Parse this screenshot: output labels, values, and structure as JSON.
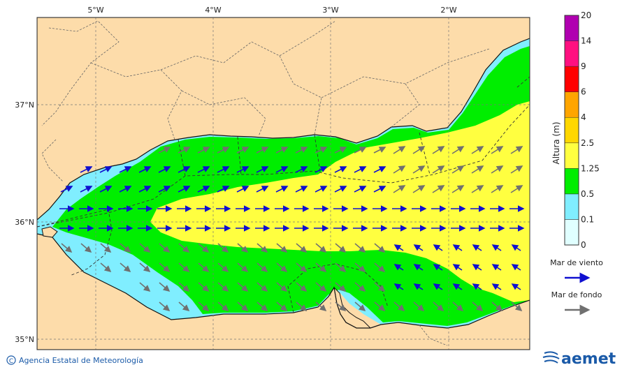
{
  "map": {
    "lon_labels": [
      "5°W",
      "4°W",
      "3°W",
      "2°W"
    ],
    "lat_labels": [
      "37°N",
      "36°N",
      "35°N"
    ]
  },
  "colorbar": {
    "title": "Altura (m)",
    "levels": [
      "0",
      "0.1",
      "0.5",
      "1.25",
      "2.5",
      "4",
      "6",
      "9",
      "14",
      "20"
    ],
    "colors": [
      "#e0ffff",
      "#80eeff",
      "#00ee00",
      "#ffff40",
      "#ffd700",
      "#ffa500",
      "#ff0000",
      "#ff1080",
      "#b000b0"
    ]
  },
  "legend": {
    "wind_sea": "Mar de viento",
    "swell": "Mar de fondo",
    "wind_color": "#1010d0",
    "swell_color": "#707070"
  },
  "credit": "Agencia Estatal de Meteorología",
  "logo_text": "aemet",
  "colors": {
    "land": "#fddcaa",
    "low": "#80eeff",
    "mid": "#00ee00",
    "high": "#ffff40"
  }
}
